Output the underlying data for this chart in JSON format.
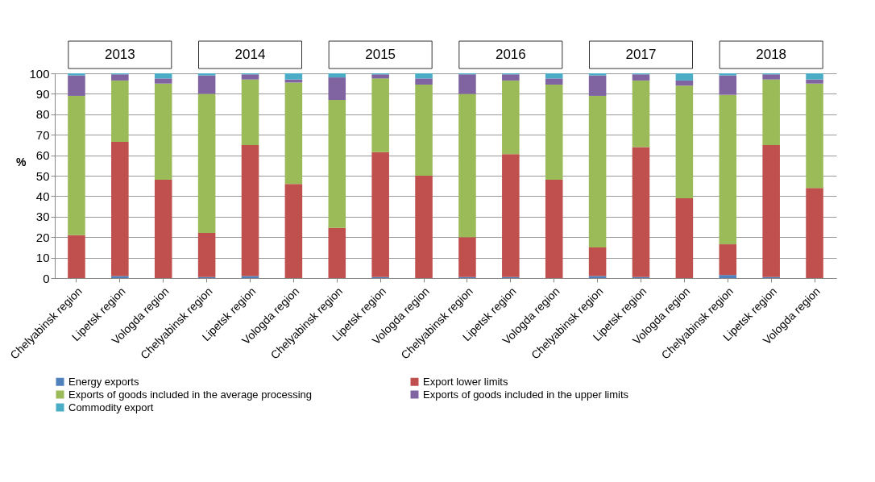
{
  "chart_data": {
    "type": "bar",
    "stacked": true,
    "ylabel": "%",
    "categories": [
      "Chelyabinsk region",
      "Lipetsk region",
      "Vologda region",
      "Chelyabinsk region",
      "Lipetsk region",
      "Vologda region",
      "Chelyabinsk region",
      "Lipetsk region",
      "Vologda region",
      "Chelyabinsk region",
      "Lipetsk region",
      "Vologda region",
      "Chelyabinsk region",
      "Lipetsk region",
      "Vologda region",
      "Chelyabinsk region",
      "Lipetsk region",
      "Vologda region"
    ],
    "series": [
      {
        "name": "Energy exports",
        "color": "#4f81bd",
        "values": [
          0,
          1,
          0,
          0.5,
          1,
          0,
          0,
          0.5,
          0,
          0.5,
          0.5,
          0,
          1,
          0.5,
          0,
          1.5,
          0.5,
          0
        ]
      },
      {
        "name": "Export lower limits",
        "color": "#c0504d",
        "values": [
          21,
          65.5,
          48,
          21.5,
          64,
          46,
          24.5,
          61,
          50,
          19.5,
          60,
          48,
          14,
          63.5,
          39,
          15,
          64.5,
          44
        ]
      },
      {
        "name": "Exports of goods included in the average processing",
        "color": "#9bbb59",
        "values": [
          68,
          30,
          47,
          68,
          32,
          49.5,
          62.5,
          36,
          44.5,
          70,
          36,
          46.5,
          74,
          32.5,
          55,
          73,
          32,
          51
        ]
      },
      {
        "name": "Exports of goods included in the upper limits",
        "color": "#8064a2",
        "values": [
          10,
          3,
          2.5,
          9,
          2.5,
          1.5,
          11,
          2,
          3,
          9.5,
          3,
          3,
          10,
          3,
          2.5,
          9.5,
          2.5,
          2
        ]
      },
      {
        "name": "Commodity export",
        "color": "#4bacc6",
        "values": [
          1,
          0.5,
          2.5,
          1,
          0.5,
          3,
          2,
          0.5,
          2.5,
          0.5,
          0.5,
          2.5,
          1,
          0.5,
          3.5,
          1,
          0.5,
          3
        ]
      }
    ],
    "annotations": [
      "2013",
      "2014",
      "2015",
      "2016",
      "2017",
      "2018"
    ],
    "ylim": [
      0,
      100
    ],
    "yticks": [
      0,
      10,
      20,
      30,
      40,
      50,
      60,
      70,
      80,
      90,
      100
    ],
    "grid": "y",
    "legend": "bottom"
  }
}
